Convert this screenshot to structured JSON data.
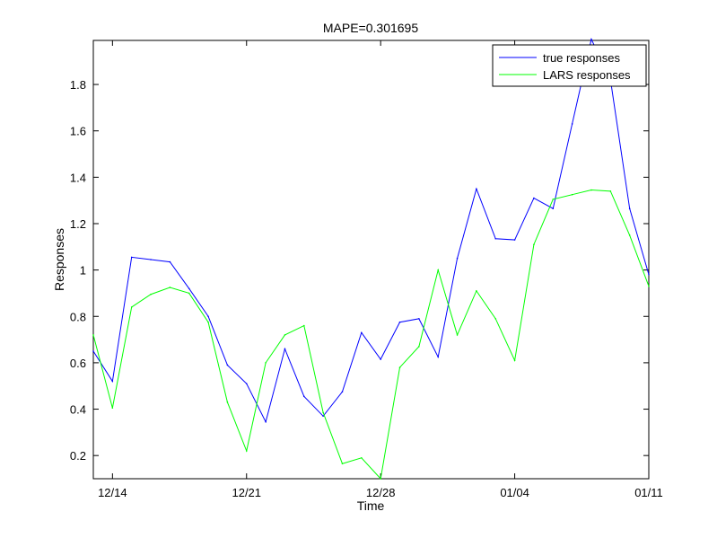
{
  "chart_data": {
    "type": "line",
    "title": "MAPE=0.301695",
    "xlabel": "Time",
    "ylabel": "Responses",
    "xlim": [
      0,
      29
    ],
    "ylim": [
      0.1,
      1.99
    ],
    "x_ticks": [
      {
        "x": 1,
        "label": "12/14"
      },
      {
        "x": 8,
        "label": "12/21"
      },
      {
        "x": 15,
        "label": "12/28"
      },
      {
        "x": 22,
        "label": "01/04"
      },
      {
        "x": 29,
        "label": "01/11"
      }
    ],
    "y_ticks": [
      0.2,
      0.4,
      0.6,
      0.8,
      1,
      1.2,
      1.4,
      1.6,
      1.8
    ],
    "y_tick_labels": [
      "0.2",
      "0.4",
      "0.6",
      "0.8",
      "1",
      "1.2",
      "1.4",
      "1.6",
      "1.8"
    ],
    "grid": false,
    "legend_position": "top-right",
    "series": [
      {
        "name": "true responses",
        "color": "#0000ff",
        "values": [
          0.65,
          0.52,
          1.055,
          1.045,
          1.035,
          0.92,
          0.8,
          0.59,
          0.51,
          0.345,
          0.66,
          0.455,
          0.37,
          0.475,
          0.73,
          0.615,
          0.775,
          0.79,
          0.625,
          1.05,
          1.35,
          1.135,
          1.13,
          1.31,
          1.265,
          1.63,
          1.995,
          1.82,
          1.265,
          0.98
        ]
      },
      {
        "name": "LARS responses",
        "color": "#00ff00",
        "values": [
          0.72,
          0.405,
          0.84,
          0.895,
          0.925,
          0.9,
          0.775,
          0.43,
          0.22,
          0.6,
          0.72,
          0.76,
          0.385,
          0.165,
          0.19,
          0.1,
          0.58,
          0.67,
          1.0,
          0.72,
          0.91,
          0.79,
          0.61,
          1.11,
          1.305,
          1.325,
          1.345,
          1.34,
          1.15,
          0.93
        ]
      }
    ]
  }
}
